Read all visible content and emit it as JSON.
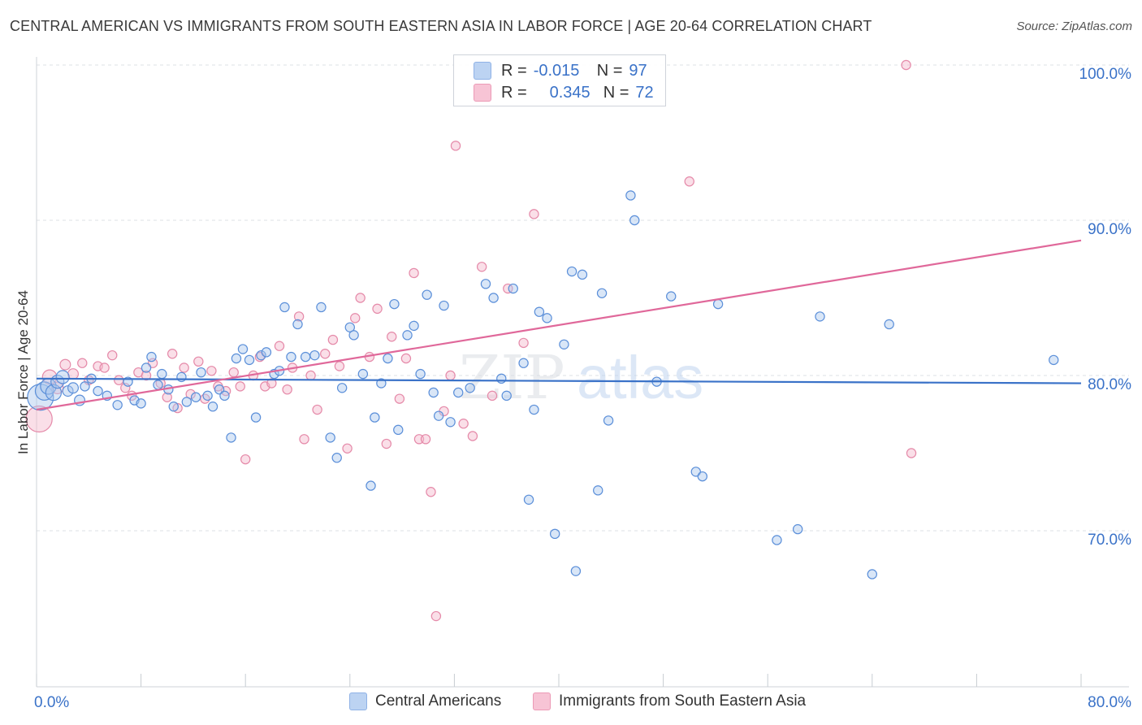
{
  "title": "CENTRAL AMERICAN VS IMMIGRANTS FROM SOUTH EASTERN ASIA IN LABOR FORCE | AGE 20-64 CORRELATION CHART",
  "source": "Source: ZipAtlas.com",
  "watermark": {
    "zip": "ZIP",
    "atlas": "atlas"
  },
  "legend_top": {
    "rows": [
      {
        "r_label": "R =",
        "r_value": "-0.015",
        "n_label": "N =",
        "n_value": "97"
      },
      {
        "r_label": "R =",
        "r_value": "0.345",
        "n_label": "N =",
        "n_value": "72"
      }
    ]
  },
  "legend_bottom": {
    "series1": "Central Americans",
    "series2": "Immigrants from South Eastern Asia"
  },
  "colors": {
    "blue_fill": "#aac7ee",
    "blue_stroke": "#5b8fd9",
    "blue_line": "#3a72c8",
    "pink_fill": "#f5b7cc",
    "pink_stroke": "#e58aa9",
    "pink_line": "#e0689a",
    "tick_label": "#3a72c8",
    "grid": "#dde1e6"
  },
  "chart_data": {
    "type": "scatter",
    "title": "CENTRAL AMERICAN VS IMMIGRANTS FROM SOUTH EASTERN ASIA IN LABOR FORCE | AGE 20-64 CORRELATION CHART",
    "xlabel": "",
    "ylabel": "In Labor Force | Age 20-64",
    "xlim": [
      0,
      80
    ],
    "ylim": [
      60,
      102
    ],
    "x_tick_labels": [
      "0.0%",
      "80.0%"
    ],
    "y_ticks": [
      70,
      80,
      90,
      100
    ],
    "y_tick_labels": [
      "70.0%",
      "80.0%",
      "90.0%",
      "100.0%"
    ],
    "series": [
      {
        "name": "Central Americans",
        "color": "blue",
        "trend": {
          "x": [
            0,
            80
          ],
          "y": [
            79.8,
            79.5
          ]
        },
        "points": [
          [
            0.3,
            78.6,
            2.0
          ],
          [
            0.6,
            79.0,
            1.4
          ],
          [
            0.9,
            79.3,
            1.2
          ],
          [
            1.3,
            78.9,
            1.2
          ],
          [
            1.6,
            79.6,
            1.0
          ],
          [
            2.0,
            79.9,
            1.0
          ],
          [
            2.4,
            79.0,
            0.8
          ],
          [
            2.8,
            79.2,
            0.8
          ],
          [
            3.3,
            78.4,
            0.8
          ],
          [
            3.7,
            79.3,
            0.7
          ],
          [
            4.2,
            79.8,
            0.7
          ],
          [
            4.7,
            79.0,
            0.7
          ],
          [
            5.4,
            78.7,
            0.7
          ],
          [
            6.2,
            78.1,
            0.7
          ],
          [
            7.0,
            79.6,
            0.7
          ],
          [
            7.5,
            78.4,
            0.7
          ],
          [
            8.0,
            78.2,
            0.7
          ],
          [
            8.4,
            80.5,
            0.7
          ],
          [
            8.8,
            81.2,
            0.7
          ],
          [
            9.3,
            79.4,
            0.7
          ],
          [
            9.6,
            80.1,
            0.7
          ],
          [
            10.1,
            79.1,
            0.7
          ],
          [
            10.5,
            78.0,
            0.7
          ],
          [
            11.1,
            79.9,
            0.7
          ],
          [
            11.5,
            78.3,
            0.7
          ],
          [
            12.2,
            78.6,
            0.7
          ],
          [
            12.6,
            80.2,
            0.7
          ],
          [
            13.1,
            78.7,
            0.7
          ],
          [
            13.5,
            78.0,
            0.7
          ],
          [
            14.0,
            79.1,
            0.7
          ],
          [
            14.4,
            78.7,
            0.7
          ],
          [
            14.9,
            76.0,
            0.7
          ],
          [
            15.3,
            81.1,
            0.7
          ],
          [
            15.8,
            81.7,
            0.7
          ],
          [
            16.3,
            81.0,
            0.7
          ],
          [
            16.8,
            77.3,
            0.7
          ],
          [
            17.2,
            81.3,
            0.7
          ],
          [
            17.6,
            81.5,
            0.7
          ],
          [
            18.2,
            80.1,
            0.7
          ],
          [
            18.6,
            80.3,
            0.7
          ],
          [
            19.0,
            84.4,
            0.7
          ],
          [
            19.5,
            81.2,
            0.7
          ],
          [
            20.0,
            83.3,
            0.7
          ],
          [
            20.6,
            81.2,
            0.7
          ],
          [
            21.3,
            81.3,
            0.7
          ],
          [
            21.8,
            84.4,
            0.7
          ],
          [
            22.5,
            76.0,
            0.7
          ],
          [
            23.0,
            74.7,
            0.7
          ],
          [
            23.4,
            79.2,
            0.7
          ],
          [
            24.0,
            83.1,
            0.7
          ],
          [
            24.3,
            82.6,
            0.7
          ],
          [
            25.0,
            80.1,
            0.7
          ],
          [
            25.6,
            72.9,
            0.7
          ],
          [
            25.9,
            77.3,
            0.7
          ],
          [
            26.4,
            79.5,
            0.7
          ],
          [
            26.9,
            81.1,
            0.7
          ],
          [
            27.4,
            84.6,
            0.7
          ],
          [
            27.7,
            76.5,
            0.7
          ],
          [
            28.4,
            82.6,
            0.7
          ],
          [
            28.9,
            83.2,
            0.7
          ],
          [
            29.4,
            80.1,
            0.7
          ],
          [
            29.9,
            85.2,
            0.7
          ],
          [
            30.4,
            78.9,
            0.7
          ],
          [
            30.8,
            77.4,
            0.7
          ],
          [
            31.2,
            84.5,
            0.7
          ],
          [
            31.7,
            77.0,
            0.7
          ],
          [
            32.3,
            78.9,
            0.7
          ],
          [
            33.2,
            79.2,
            0.7
          ],
          [
            34.4,
            85.9,
            0.7
          ],
          [
            35.0,
            85.0,
            0.7
          ],
          [
            35.6,
            79.8,
            0.7
          ],
          [
            36.0,
            78.7,
            0.7
          ],
          [
            36.5,
            85.6,
            0.7
          ],
          [
            37.3,
            80.8,
            0.7
          ],
          [
            37.7,
            72.0,
            0.7
          ],
          [
            38.1,
            77.8,
            0.7
          ],
          [
            38.5,
            84.1,
            0.7
          ],
          [
            39.1,
            83.7,
            0.7
          ],
          [
            39.7,
            69.8,
            0.7
          ],
          [
            40.4,
            82.0,
            0.7
          ],
          [
            41.0,
            86.7,
            0.7
          ],
          [
            41.3,
            67.4,
            0.7
          ],
          [
            41.8,
            86.5,
            0.7
          ],
          [
            43.0,
            72.6,
            0.7
          ],
          [
            43.3,
            85.3,
            0.7
          ],
          [
            43.8,
            77.1,
            0.7
          ],
          [
            45.5,
            91.6,
            0.7
          ],
          [
            45.8,
            90.0,
            0.7
          ],
          [
            47.5,
            79.6,
            0.7
          ],
          [
            48.6,
            85.1,
            0.7
          ],
          [
            50.5,
            73.8,
            0.7
          ],
          [
            51.0,
            73.5,
            0.7
          ],
          [
            52.2,
            84.6,
            0.7
          ],
          [
            56.7,
            69.4,
            0.7
          ],
          [
            58.3,
            70.1,
            0.7
          ],
          [
            60.0,
            83.8,
            0.7
          ],
          [
            64.0,
            67.2,
            0.7
          ],
          [
            65.3,
            83.3,
            0.7
          ],
          [
            77.9,
            81.0,
            0.7
          ]
        ]
      },
      {
        "name": "Immigrants from South Eastern Asia",
        "color": "pink",
        "trend": {
          "x": [
            0,
            80
          ],
          "y": [
            77.8,
            88.7
          ]
        },
        "points": [
          [
            0.2,
            77.2,
            2.0
          ],
          [
            1.0,
            79.9,
            1.1
          ],
          [
            1.6,
            79.2,
            0.9
          ],
          [
            2.2,
            80.7,
            0.8
          ],
          [
            2.8,
            80.1,
            0.8
          ],
          [
            3.5,
            80.8,
            0.7
          ],
          [
            4.0,
            79.7,
            0.7
          ],
          [
            4.7,
            80.6,
            0.7
          ],
          [
            5.2,
            80.5,
            0.7
          ],
          [
            5.8,
            81.3,
            0.7
          ],
          [
            6.3,
            79.7,
            0.7
          ],
          [
            6.8,
            79.2,
            0.7
          ],
          [
            7.3,
            78.7,
            0.7
          ],
          [
            7.8,
            80.2,
            0.7
          ],
          [
            8.4,
            80.0,
            0.7
          ],
          [
            8.9,
            80.8,
            0.7
          ],
          [
            9.5,
            79.5,
            0.7
          ],
          [
            10.0,
            78.6,
            0.7
          ],
          [
            10.4,
            81.4,
            0.7
          ],
          [
            10.8,
            77.9,
            0.7
          ],
          [
            11.3,
            80.5,
            0.7
          ],
          [
            11.8,
            78.8,
            0.7
          ],
          [
            12.4,
            80.9,
            0.7
          ],
          [
            12.9,
            78.5,
            0.7
          ],
          [
            13.4,
            80.3,
            0.7
          ],
          [
            13.9,
            79.3,
            0.7
          ],
          [
            14.5,
            79.0,
            0.7
          ],
          [
            15.1,
            80.2,
            0.7
          ],
          [
            15.6,
            79.3,
            0.7
          ],
          [
            16.0,
            74.6,
            0.7
          ],
          [
            16.6,
            80.0,
            0.7
          ],
          [
            17.1,
            81.2,
            0.7
          ],
          [
            17.5,
            79.3,
            0.7
          ],
          [
            18.0,
            79.5,
            0.7
          ],
          [
            18.6,
            81.9,
            0.7
          ],
          [
            19.2,
            79.1,
            0.7
          ],
          [
            19.6,
            80.5,
            0.7
          ],
          [
            20.1,
            83.8,
            0.7
          ],
          [
            20.5,
            75.9,
            0.7
          ],
          [
            21.0,
            80.0,
            0.7
          ],
          [
            21.5,
            77.8,
            0.7
          ],
          [
            22.1,
            81.4,
            0.7
          ],
          [
            22.7,
            82.3,
            0.7
          ],
          [
            23.2,
            80.6,
            0.7
          ],
          [
            23.8,
            75.3,
            0.7
          ],
          [
            24.4,
            83.7,
            0.7
          ],
          [
            24.8,
            85.0,
            0.7
          ],
          [
            25.5,
            81.2,
            0.7
          ],
          [
            26.1,
            84.3,
            0.7
          ],
          [
            26.8,
            75.6,
            0.7
          ],
          [
            27.2,
            82.5,
            0.7
          ],
          [
            27.8,
            78.5,
            0.7
          ],
          [
            28.3,
            81.1,
            0.7
          ],
          [
            28.9,
            86.6,
            0.7
          ],
          [
            29.3,
            75.9,
            0.7
          ],
          [
            29.8,
            75.9,
            0.7
          ],
          [
            30.2,
            72.5,
            0.7
          ],
          [
            31.2,
            77.7,
            0.7
          ],
          [
            31.7,
            80.0,
            0.7
          ],
          [
            32.1,
            94.8,
            0.7
          ],
          [
            32.7,
            76.9,
            0.7
          ],
          [
            33.4,
            76.1,
            0.7
          ],
          [
            34.1,
            87.0,
            0.7
          ],
          [
            34.9,
            78.7,
            0.7
          ],
          [
            36.1,
            85.6,
            0.7
          ],
          [
            37.3,
            82.1,
            0.7
          ],
          [
            38.1,
            90.4,
            0.7
          ],
          [
            30.6,
            64.5,
            0.7
          ],
          [
            50.0,
            92.5,
            0.7
          ],
          [
            66.6,
            100.0,
            0.7
          ],
          [
            67.0,
            75.0,
            0.7
          ]
        ]
      }
    ]
  }
}
